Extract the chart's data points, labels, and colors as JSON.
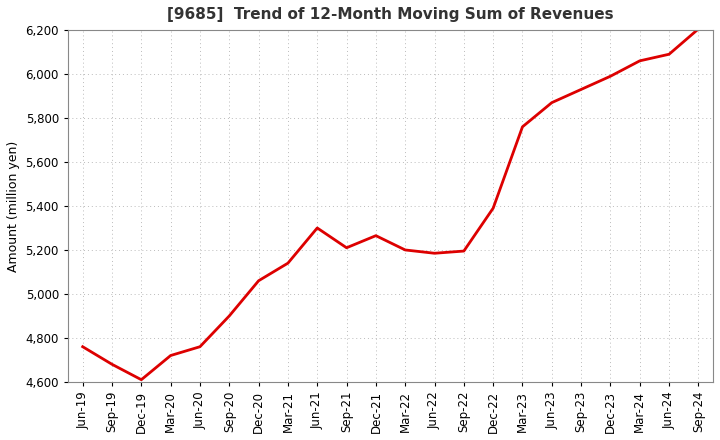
{
  "title": "[9685]  Trend of 12-Month Moving Sum of Revenues",
  "ylabel": "Amount (million yen)",
  "line_color": "#dd0000",
  "background_color": "#ffffff",
  "plot_bg_color": "#ffffff",
  "grid_color": "#bbbbbb",
  "ylim": [
    4600,
    6200
  ],
  "yticks": [
    4600,
    4800,
    5000,
    5200,
    5400,
    5600,
    5800,
    6000,
    6200
  ],
  "x_labels": [
    "Jun-19",
    "Sep-19",
    "Dec-19",
    "Mar-20",
    "Jun-20",
    "Sep-20",
    "Dec-20",
    "Mar-21",
    "Jun-21",
    "Sep-21",
    "Dec-21",
    "Mar-22",
    "Jun-22",
    "Sep-22",
    "Dec-22",
    "Mar-23",
    "Jun-23",
    "Sep-23",
    "Dec-23",
    "Mar-24",
    "Jun-24",
    "Sep-24"
  ],
  "y_values": [
    4760,
    4680,
    4610,
    4720,
    4760,
    4900,
    5060,
    5140,
    5300,
    5210,
    5265,
    5200,
    5185,
    5195,
    5390,
    5760,
    5870,
    5930,
    5990,
    6060,
    6090,
    6205
  ],
  "title_fontsize": 11,
  "ylabel_fontsize": 9,
  "tick_fontsize": 8.5,
  "line_width": 2.0
}
